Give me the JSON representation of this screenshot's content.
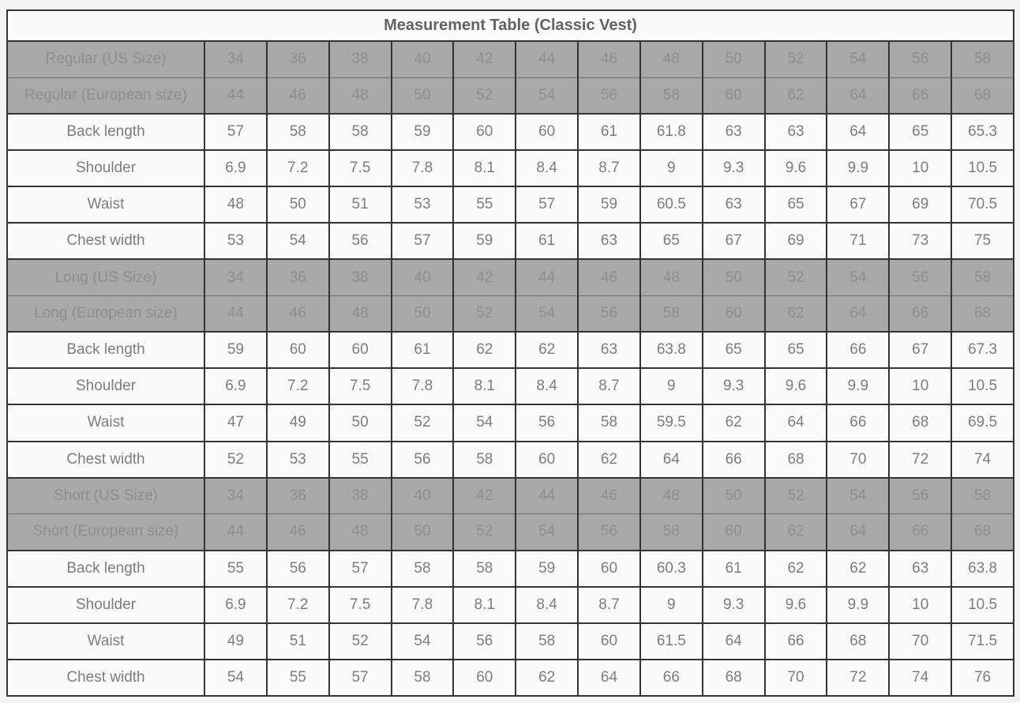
{
  "title": "Measurement Table (Classic Vest)",
  "colors": {
    "border": "#333333",
    "size_header_bg": "#a9a9a9",
    "size_header_text": "#8d8d8d",
    "cell_bg": "#fafafa",
    "cell_text": "#7d7d7d",
    "title_text": "#636363",
    "page_bg": "#f4f4f4"
  },
  "chart_data": {
    "type": "table",
    "title": "Measurement Table (Classic Vest)",
    "column_count": 14,
    "sections": [
      {
        "name": "Regular",
        "rows": [
          {
            "type": "size",
            "label": "Regular (US Size)",
            "values": [
              34,
              36,
              38,
              40,
              42,
              44,
              46,
              48,
              50,
              52,
              54,
              56,
              58
            ]
          },
          {
            "type": "size",
            "label": "Regular (European size)",
            "values": [
              44,
              46,
              48,
              50,
              52,
              54,
              56,
              58,
              60,
              62,
              64,
              66,
              68
            ]
          },
          {
            "type": "measure",
            "label": "Back length",
            "values": [
              57,
              58,
              58,
              59,
              60,
              60,
              61,
              61.8,
              63,
              63,
              64,
              65,
              65.3
            ]
          },
          {
            "type": "measure",
            "label": "Shoulder",
            "values": [
              6.9,
              7.2,
              7.5,
              7.8,
              8.1,
              8.4,
              8.7,
              9,
              9.3,
              9.6,
              9.9,
              10,
              10.5
            ]
          },
          {
            "type": "measure",
            "label": "Waist",
            "values": [
              48,
              50,
              51,
              53,
              55,
              57,
              59,
              60.5,
              63,
              65,
              67,
              69,
              70.5
            ]
          },
          {
            "type": "measure",
            "label": "Chest width",
            "values": [
              53,
              54,
              56,
              57,
              59,
              61,
              63,
              65,
              67,
              69,
              71,
              73,
              75
            ]
          }
        ]
      },
      {
        "name": "Long",
        "rows": [
          {
            "type": "size",
            "label": "Long (US Size)",
            "values": [
              34,
              36,
              38,
              40,
              42,
              44,
              46,
              48,
              50,
              52,
              54,
              56,
              58
            ]
          },
          {
            "type": "size",
            "label": "Long (European size)",
            "values": [
              44,
              46,
              48,
              50,
              52,
              54,
              56,
              58,
              60,
              62,
              64,
              66,
              68
            ]
          },
          {
            "type": "measure",
            "label": "Back length",
            "values": [
              59,
              60,
              60,
              61,
              62,
              62,
              63,
              63.8,
              65,
              65,
              66,
              67,
              67.3
            ]
          },
          {
            "type": "measure",
            "label": "Shoulder",
            "values": [
              6.9,
              7.2,
              7.5,
              7.8,
              8.1,
              8.4,
              8.7,
              9,
              9.3,
              9.6,
              9.9,
              10,
              10.5
            ]
          },
          {
            "type": "measure",
            "label": "Waist",
            "values": [
              47,
              49,
              50,
              52,
              54,
              56,
              58,
              59.5,
              62,
              64,
              66,
              68,
              69.5
            ]
          },
          {
            "type": "measure",
            "label": "Chest width",
            "values": [
              52,
              53,
              55,
              56,
              58,
              60,
              62,
              64,
              66,
              68,
              70,
              72,
              74
            ]
          }
        ]
      },
      {
        "name": "Short",
        "rows": [
          {
            "type": "size",
            "label": "Short (US Size)",
            "values": [
              34,
              36,
              38,
              40,
              42,
              44,
              46,
              48,
              50,
              52,
              54,
              56,
              58
            ]
          },
          {
            "type": "size",
            "label": "Short (European size)",
            "values": [
              44,
              46,
              48,
              50,
              52,
              54,
              56,
              58,
              60,
              62,
              64,
              66,
              68
            ]
          },
          {
            "type": "measure",
            "label": "Back length",
            "values": [
              55,
              56,
              57,
              58,
              58,
              59,
              60,
              60.3,
              61,
              62,
              62,
              63,
              63.8
            ]
          },
          {
            "type": "measure",
            "label": "Shoulder",
            "values": [
              6.9,
              7.2,
              7.5,
              7.8,
              8.1,
              8.4,
              8.7,
              9,
              9.3,
              9.6,
              9.9,
              10,
              10.5
            ]
          },
          {
            "type": "measure",
            "label": "Waist",
            "values": [
              49,
              51,
              52,
              54,
              56,
              58,
              60,
              61.5,
              64,
              66,
              68,
              70,
              71.5
            ]
          },
          {
            "type": "measure",
            "label": "Chest width",
            "values": [
              54,
              55,
              57,
              58,
              60,
              62,
              64,
              66,
              68,
              70,
              72,
              74,
              76
            ]
          }
        ]
      }
    ]
  }
}
